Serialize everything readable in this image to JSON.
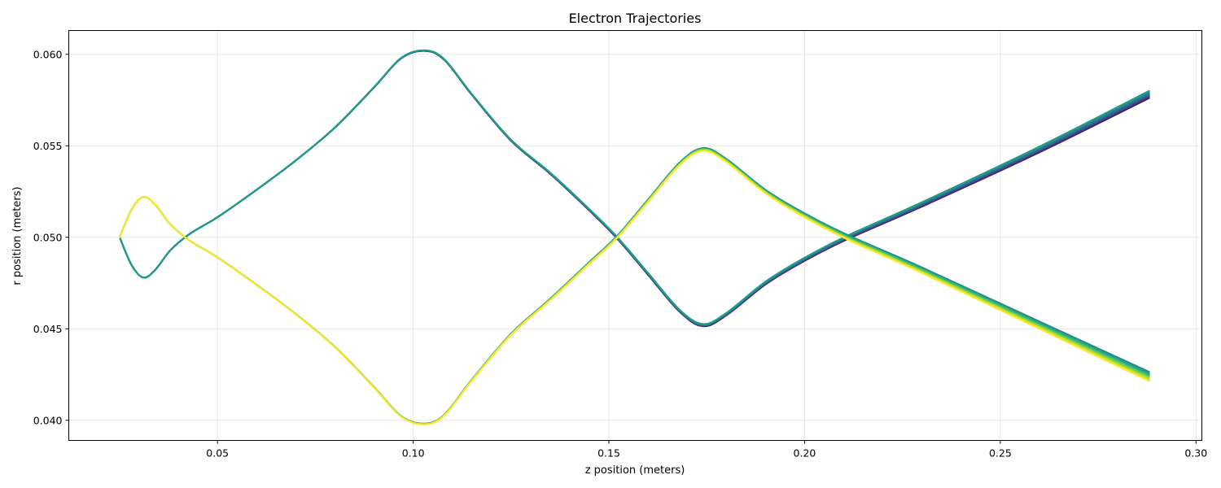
{
  "chart_data": {
    "type": "line",
    "title": "Electron Trajectories",
    "xlabel": "z position (meters)",
    "ylabel": "r position (meters)",
    "xlim": [
      0.012,
      0.3015
    ],
    "ylim": [
      0.0389,
      0.0613
    ],
    "xticks": [
      0.05,
      0.1,
      0.15,
      0.2,
      0.25,
      0.3
    ],
    "xtick_labels": [
      "0.05",
      "0.10",
      "0.15",
      "0.20",
      "0.25",
      "0.30"
    ],
    "yticks": [
      0.04,
      0.045,
      0.05,
      0.055,
      0.06
    ],
    "ytick_labels": [
      "0.040",
      "0.045",
      "0.050",
      "0.055",
      "0.060"
    ],
    "grid": true,
    "colormap": "viridis",
    "num_trajectories": 11,
    "groups": [
      {
        "direction": "initially-down",
        "z": [
          0.025,
          0.028,
          0.031,
          0.034,
          0.038,
          0.043,
          0.05,
          0.06,
          0.07,
          0.08,
          0.09,
          0.097,
          0.103,
          0.108,
          0.115,
          0.125,
          0.135,
          0.145,
          0.152,
          0.16,
          0.168,
          0.174,
          0.18,
          0.19,
          0.2,
          0.211,
          0.23,
          0.26,
          0.288
        ],
        "r": [
          0.05,
          0.0485,
          0.0478,
          0.0482,
          0.0493,
          0.0502,
          0.0511,
          0.0526,
          0.0542,
          0.056,
          0.0582,
          0.0598,
          0.0602,
          0.0597,
          0.0578,
          0.0553,
          0.0535,
          0.0515,
          0.05,
          0.048,
          0.046,
          0.0452,
          0.0458,
          0.0475,
          0.0488,
          0.05,
          0.0518,
          0.0548,
          0.0578
        ],
        "r_end_spread": [
          0.0575,
          0.0579
        ],
        "min_spread": [
          0.0451,
          0.0454
        ]
      },
      {
        "direction": "initially-up",
        "z": [
          0.025,
          0.028,
          0.031,
          0.034,
          0.038,
          0.043,
          0.05,
          0.06,
          0.07,
          0.08,
          0.09,
          0.097,
          0.103,
          0.108,
          0.115,
          0.125,
          0.135,
          0.145,
          0.152,
          0.16,
          0.168,
          0.174,
          0.18,
          0.19,
          0.2,
          0.211,
          0.23,
          0.26,
          0.288
        ],
        "r": [
          0.05,
          0.0515,
          0.0522,
          0.0518,
          0.0507,
          0.0498,
          0.0489,
          0.0474,
          0.0458,
          0.044,
          0.0418,
          0.0402,
          0.0398,
          0.0403,
          0.0422,
          0.0447,
          0.0466,
          0.0486,
          0.05,
          0.052,
          0.054,
          0.0548,
          0.0542,
          0.0525,
          0.0512,
          0.05,
          0.0482,
          0.0452,
          0.0424
        ],
        "r_end_spread": [
          0.0421,
          0.0426
        ],
        "max_spread": [
          0.0546,
          0.0549
        ]
      }
    ]
  }
}
